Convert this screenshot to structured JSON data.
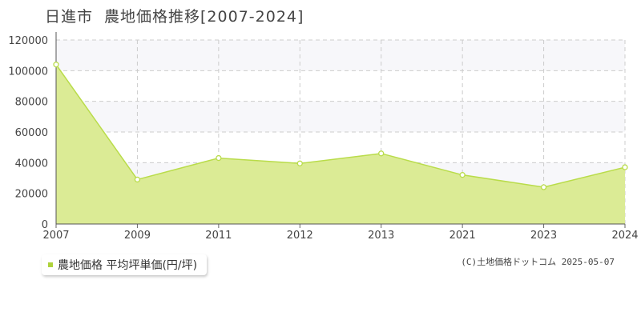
{
  "header": {
    "city": "日進市",
    "title": "農地価格推移[2007-2024]"
  },
  "legend": {
    "label": "農地価格 平均坪単価(円/坪)"
  },
  "credit": {
    "text": "(C)土地価格ドットコム 2025-05-07"
  },
  "colors": {
    "fill": "#dbeb95",
    "line": "#b9dc4a",
    "legend_swatch": "#aed23b",
    "grid": "#cccccc",
    "band": "#f7f7fa"
  },
  "chart_data": {
    "type": "area",
    "title": "農地価格推移[2007-2024]",
    "xlabel": "",
    "ylabel": "",
    "categories": [
      "2007",
      "2009",
      "2011",
      "2012",
      "2013",
      "2021",
      "2023",
      "2024"
    ],
    "series": [
      {
        "name": "農地価格 平均坪単価(円/坪)",
        "values": [
          104000,
          29000,
          43000,
          39500,
          46000,
          32000,
          24000,
          37000
        ]
      }
    ],
    "ylim": [
      0,
      120000
    ],
    "yticks": [
      0,
      20000,
      40000,
      60000,
      80000,
      100000,
      120000
    ],
    "grid": true,
    "legend_position": "bottom-left"
  }
}
